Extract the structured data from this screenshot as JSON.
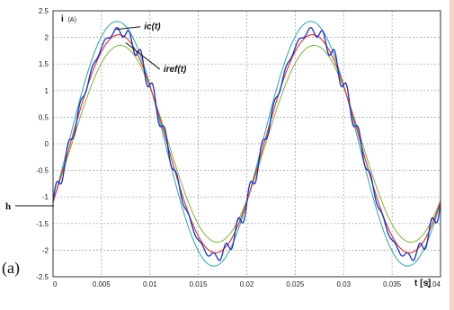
{
  "panel_label": "(a)",
  "h_label": "h",
  "chart_data": {
    "type": "line",
    "title": "",
    "xlabel": "t [s]",
    "ylabel": "i (A)",
    "ylabel_main": "i",
    "ylabel_unit": "(A)",
    "xlim": [
      0,
      0.04
    ],
    "ylim": [
      -2.5,
      2.5
    ],
    "grid": true,
    "x_ticks": [
      0,
      0.005,
      0.01,
      0.015,
      0.02,
      0.025,
      0.03,
      0.035,
      0.04
    ],
    "x_tick_labels": [
      "0",
      "0.005",
      "0.01",
      "0.015",
      "0.02",
      "0.025",
      "0.03",
      "0.035",
      "0.04"
    ],
    "y_ticks": [
      -2.5,
      -2,
      -1.5,
      -1,
      -0.5,
      0,
      0.5,
      1,
      1.5,
      2,
      2.5
    ],
    "y_tick_labels": [
      "-2.5",
      "-2",
      "-1.5",
      "-1",
      "-0.5",
      "0",
      "0.5",
      "1",
      "1.5",
      "2",
      "2.5"
    ],
    "series": [
      {
        "name": "",
        "color": "#2aa6a6",
        "amplitude": 2.3,
        "phase": 0.5,
        "offset": 0.0
      },
      {
        "name": "",
        "color": "#7ab33a",
        "amplitude": 1.85,
        "phase": 0.61,
        "offset": 0.0
      },
      {
        "name": "",
        "color": "#f07a1e",
        "amplitude": 2.05,
        "phase": 0.56,
        "offset": 0.0
      },
      {
        "name": "",
        "color": "#e03030",
        "amplitude": 2.05,
        "phase": 0.56,
        "offset": 0.0
      },
      {
        "name": "",
        "color": "#1a2fc8",
        "amplitude": 2.12,
        "phase": 0.55,
        "offset": 0.0,
        "ripple": 0.18
      }
    ],
    "frequency_hz": 50,
    "annotations": [
      {
        "text": "ic(t)",
        "x": 0.0065,
        "y": 2.15,
        "label_x": 0.0094,
        "label_y": 2.15
      },
      {
        "text": "iref(t)",
        "x": 0.0075,
        "y": 1.9,
        "label_x": 0.0114,
        "label_y": 1.35
      }
    ]
  }
}
